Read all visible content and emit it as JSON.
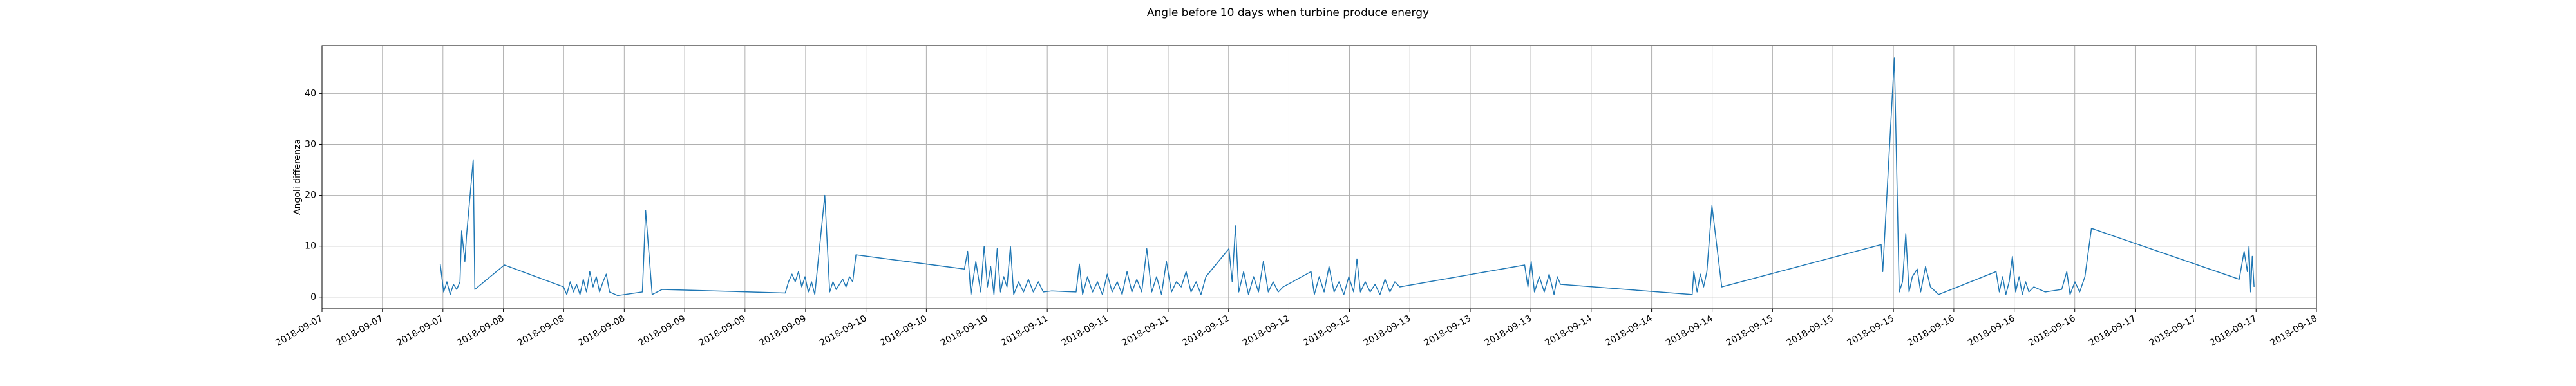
{
  "chart_data": {
    "type": "line",
    "title": "Angle before 10 days when turbine produce energy",
    "ylabel": "Angoli differenza",
    "grid": true,
    "xlim": [
      7,
      18
    ],
    "ylim": [
      -2.3,
      49.4
    ],
    "yticks": [
      0,
      10,
      20,
      30,
      40
    ],
    "xticks": [
      {
        "value": 7,
        "label": "2018-09-07"
      },
      {
        "value": 7.333,
        "label": "2018-09-07"
      },
      {
        "value": 7.667,
        "label": "2018-09-07"
      },
      {
        "value": 8,
        "label": "2018-09-08"
      },
      {
        "value": 8.333,
        "label": "2018-09-08"
      },
      {
        "value": 8.667,
        "label": "2018-09-08"
      },
      {
        "value": 9,
        "label": "2018-09-09"
      },
      {
        "value": 9.333,
        "label": "2018-09-09"
      },
      {
        "value": 9.667,
        "label": "2018-09-09"
      },
      {
        "value": 10,
        "label": "2018-09-10"
      },
      {
        "value": 10.333,
        "label": "2018-09-10"
      },
      {
        "value": 10.667,
        "label": "2018-09-10"
      },
      {
        "value": 11,
        "label": "2018-09-11"
      },
      {
        "value": 11.333,
        "label": "2018-09-11"
      },
      {
        "value": 11.667,
        "label": "2018-09-11"
      },
      {
        "value": 12,
        "label": "2018-09-12"
      },
      {
        "value": 12.333,
        "label": "2018-09-12"
      },
      {
        "value": 12.667,
        "label": "2018-09-12"
      },
      {
        "value": 13,
        "label": "2018-09-13"
      },
      {
        "value": 13.333,
        "label": "2018-09-13"
      },
      {
        "value": 13.667,
        "label": "2018-09-13"
      },
      {
        "value": 14,
        "label": "2018-09-14"
      },
      {
        "value": 14.333,
        "label": "2018-09-14"
      },
      {
        "value": 14.667,
        "label": "2018-09-14"
      },
      {
        "value": 15,
        "label": "2018-09-15"
      },
      {
        "value": 15.333,
        "label": "2018-09-15"
      },
      {
        "value": 15.667,
        "label": "2018-09-15"
      },
      {
        "value": 16,
        "label": "2018-09-16"
      },
      {
        "value": 16.333,
        "label": "2018-09-16"
      },
      {
        "value": 16.667,
        "label": "2018-09-16"
      },
      {
        "value": 17,
        "label": "2018-09-17"
      },
      {
        "value": 17.333,
        "label": "2018-09-17"
      },
      {
        "value": 17.667,
        "label": "2018-09-17"
      },
      {
        "value": 18,
        "label": "2018-09-18"
      }
    ],
    "series": [
      {
        "color": "#1f77b4",
        "x": [
          7.652,
          7.671,
          7.689,
          7.707,
          7.725,
          7.743,
          7.761,
          7.77,
          7.788,
          7.797,
          7.834,
          7.843,
          8.006,
          8.332,
          8.35,
          8.369,
          8.387,
          8.404,
          8.423,
          8.441,
          8.459,
          8.477,
          8.495,
          8.513,
          8.531,
          8.55,
          8.568,
          8.586,
          8.631,
          8.767,
          8.785,
          8.821,
          8.876,
          9.555,
          9.573,
          9.592,
          9.61,
          9.628,
          9.646,
          9.664,
          9.682,
          9.7,
          9.718,
          9.773,
          9.8,
          9.818,
          9.836,
          9.854,
          9.872,
          9.89,
          9.909,
          9.927,
          9.945,
          10.543,
          10.561,
          10.579,
          10.606,
          10.633,
          10.652,
          10.67,
          10.688,
          10.706,
          10.724,
          10.742,
          10.76,
          10.778,
          10.797,
          10.815,
          10.842,
          10.869,
          10.896,
          10.923,
          10.951,
          10.978,
          11.023,
          11.159,
          11.177,
          11.195,
          11.222,
          11.25,
          11.277,
          11.304,
          11.331,
          11.358,
          11.386,
          11.413,
          11.44,
          11.467,
          11.494,
          11.521,
          11.549,
          11.576,
          11.603,
          11.63,
          11.657,
          11.685,
          11.712,
          11.739,
          11.766,
          11.793,
          11.821,
          11.848,
          11.875,
          12.002,
          12.02,
          12.038,
          12.056,
          12.083,
          12.11,
          12.138,
          12.165,
          12.192,
          12.219,
          12.246,
          12.274,
          12.301,
          12.455,
          12.473,
          12.5,
          12.527,
          12.554,
          12.582,
          12.609,
          12.636,
          12.663,
          12.69,
          12.708,
          12.727,
          12.754,
          12.781,
          12.808,
          12.835,
          12.863,
          12.89,
          12.917,
          12.944,
          13.633,
          13.651,
          13.669,
          13.687,
          13.714,
          13.741,
          13.768,
          13.795,
          13.813,
          13.831,
          14.557,
          14.566,
          14.584,
          14.602,
          14.62,
          14.638,
          14.666,
          14.72,
          15.599,
          15.608,
          15.672,
          15.699,
          15.717,
          15.735,
          15.753,
          15.771,
          15.798,
          15.817,
          15.844,
          15.871,
          15.916,
          16.233,
          16.251,
          16.269,
          16.287,
          16.305,
          16.323,
          16.341,
          16.36,
          16.378,
          16.396,
          16.414,
          16.441,
          16.504,
          16.595,
          16.623,
          16.641,
          16.668,
          16.694,
          16.723,
          16.759,
          17.574,
          17.601,
          17.619,
          17.628,
          17.637,
          17.646,
          17.656
        ],
        "values": [
          6.5,
          1,
          3,
          0.5,
          2.5,
          1.5,
          3,
          13,
          7,
          12,
          27,
          1.5,
          6.3,
          2,
          0.5,
          3,
          1,
          2.5,
          0.5,
          3.5,
          1,
          5,
          2,
          4,
          1,
          3,
          4.5,
          1,
          0.3,
          1,
          17,
          0.5,
          1.5,
          0.8,
          3,
          4.5,
          3,
          5,
          2,
          4,
          1,
          3,
          0.5,
          20,
          1,
          3,
          1.5,
          2.5,
          3.5,
          2,
          4,
          3,
          8.3,
          5.5,
          9,
          0.5,
          7,
          1,
          10,
          2,
          6,
          0.5,
          9.5,
          1,
          4,
          2,
          10,
          0.5,
          3,
          1,
          3.5,
          1,
          3,
          1,
          1.2,
          1,
          6.5,
          0.5,
          4,
          1,
          3,
          0.5,
          4.5,
          1,
          3,
          0.5,
          5,
          1,
          3.5,
          1,
          9.5,
          1,
          4,
          0.5,
          7,
          1,
          3,
          2,
          5,
          1,
          3,
          0.5,
          4,
          9.5,
          3,
          14,
          1,
          5,
          0.5,
          4,
          1,
          7,
          1,
          3,
          1,
          2,
          5,
          0.5,
          4,
          1,
          6,
          1,
          3,
          0.5,
          4,
          1,
          7.5,
          1,
          3,
          1,
          2.5,
          0.5,
          3.5,
          1,
          3,
          2,
          6.3,
          2,
          7,
          1,
          4,
          1,
          4.5,
          0.5,
          4,
          2.5,
          0.5,
          5,
          1,
          4.5,
          2,
          5,
          18,
          2,
          10.3,
          5,
          47,
          1,
          3,
          12.5,
          1,
          4,
          5.5,
          1,
          6,
          2,
          0.5,
          5,
          1,
          4,
          0.5,
          3,
          8,
          1,
          4,
          0.5,
          3,
          1,
          2,
          1,
          1.5,
          5,
          0.5,
          3,
          1,
          4,
          13.5,
          3.5,
          9,
          5,
          10,
          1,
          8,
          2
        ]
      }
    ]
  }
}
